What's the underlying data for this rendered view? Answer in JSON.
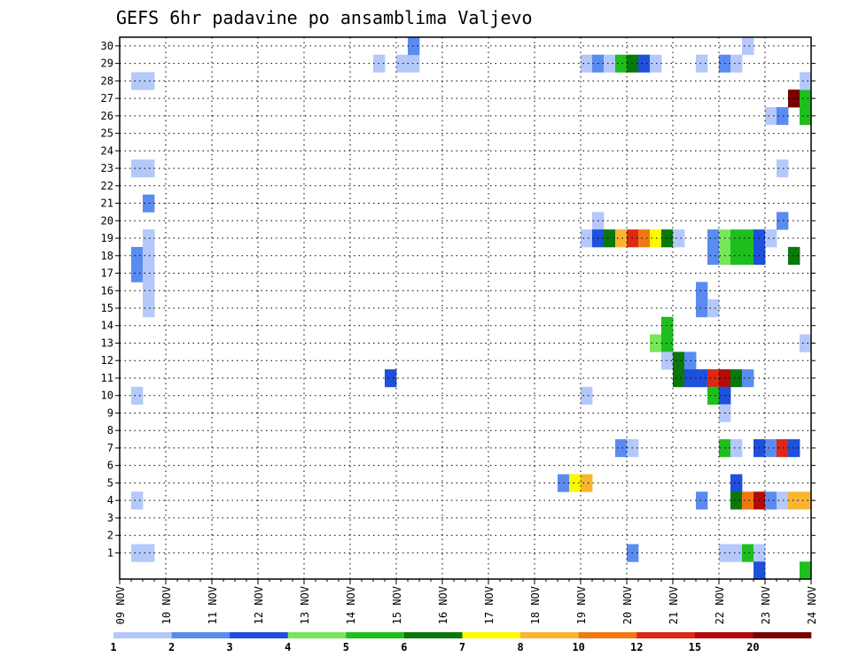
{
  "chart_data": {
    "type": "heatmap",
    "title": "GEFS 6hr padavine po ansamblima Valjevo",
    "x_labels": [
      "09 NOV",
      "10 NOV",
      "11 NOV",
      "12 NOV",
      "13 NOV",
      "14 NOV",
      "15 NOV",
      "16 NOV",
      "17 NOV",
      "18 NOV",
      "19 NOV",
      "20 NOV",
      "21 NOV",
      "22 NOV",
      "23 NOV",
      "24 NOV"
    ],
    "y_labels": [
      "1",
      "2",
      "3",
      "4",
      "5",
      "6",
      "7",
      "8",
      "9",
      "10",
      "11",
      "12",
      "13",
      "14",
      "15",
      "16",
      "17",
      "18",
      "19",
      "20",
      "21",
      "22",
      "23",
      "24",
      "25",
      "26",
      "27",
      "28",
      "29",
      "30"
    ],
    "steps_per_day": 4,
    "grid": true,
    "legend": {
      "position": "bottom",
      "boundaries": [
        "1",
        "2",
        "3",
        "4",
        "5",
        "6",
        "7",
        "8",
        "10",
        "12",
        "15",
        "20"
      ],
      "colors": [
        "#b4c8fa",
        "#5a8cf0",
        "#1e50dc",
        "#78e65a",
        "#1ebe1e",
        "#0a780a",
        "#fafa00",
        "#fab432",
        "#f07814",
        "#dc2814",
        "#b40a0a",
        "#780000"
      ]
    },
    "cells": [
      {
        "m": 1,
        "s": [
          [
            1,
            1
          ],
          [
            2,
            1
          ]
        ]
      },
      {
        "m": 4,
        "s": [
          [
            1,
            1
          ]
        ]
      },
      {
        "m": 10,
        "s": [
          [
            1,
            1
          ]
        ]
      },
      {
        "m": 15,
        "s": [
          [
            2,
            1
          ]
        ]
      },
      {
        "m": 16,
        "s": [
          [
            2,
            1
          ]
        ]
      },
      {
        "m": 17,
        "s": [
          [
            1,
            2
          ],
          [
            2,
            1
          ]
        ]
      },
      {
        "m": 18,
        "s": [
          [
            1,
            2
          ],
          [
            2,
            1
          ]
        ]
      },
      {
        "m": 19,
        "s": [
          [
            2,
            1
          ]
        ]
      },
      {
        "m": 21,
        "s": [
          [
            2,
            2
          ]
        ]
      },
      {
        "m": 23,
        "s": [
          [
            1,
            1
          ],
          [
            2,
            1
          ]
        ]
      },
      {
        "m": 28,
        "s": [
          [
            1,
            1
          ],
          [
            2,
            1
          ]
        ]
      },
      {
        "m": 29,
        "s": [
          [
            22,
            1
          ],
          [
            24,
            1
          ],
          [
            25,
            1
          ]
        ]
      },
      {
        "m": 30,
        "s": [
          [
            25,
            2
          ]
        ]
      },
      {
        "m": 11,
        "s": [
          [
            23,
            3
          ]
        ]
      },
      {
        "m": 20,
        "s": [
          [
            41,
            1
          ]
        ]
      },
      {
        "m": 19,
        "s": [
          [
            40,
            1
          ],
          [
            41,
            3
          ],
          [
            42,
            6
          ],
          [
            43,
            8
          ],
          [
            44,
            10
          ],
          [
            45,
            9
          ],
          [
            46,
            7
          ],
          [
            47,
            6
          ],
          [
            48,
            1
          ]
        ]
      },
      {
        "m": 29,
        "s": [
          [
            40,
            1
          ],
          [
            41,
            2
          ],
          [
            42,
            1
          ],
          [
            43,
            5
          ],
          [
            44,
            6
          ],
          [
            45,
            3
          ],
          [
            46,
            1
          ]
        ]
      },
      {
        "m": 10,
        "s": [
          [
            40,
            1
          ]
        ]
      },
      {
        "m": 5,
        "s": [
          [
            38,
            2
          ],
          [
            39,
            7
          ],
          [
            40,
            8
          ]
        ]
      },
      {
        "m": 7,
        "s": [
          [
            43,
            2
          ],
          [
            44,
            1
          ]
        ]
      },
      {
        "m": 1,
        "s": [
          [
            44,
            2
          ]
        ]
      },
      {
        "m": 13,
        "s": [
          [
            46,
            4
          ],
          [
            47,
            5
          ]
        ]
      },
      {
        "m": 14,
        "s": [
          [
            47,
            5
          ]
        ]
      },
      {
        "m": 12,
        "s": [
          [
            47,
            1
          ],
          [
            48,
            6
          ],
          [
            49,
            2
          ]
        ]
      },
      {
        "m": 11,
        "s": [
          [
            48,
            6
          ],
          [
            49,
            3
          ],
          [
            50,
            3
          ],
          [
            51,
            10
          ],
          [
            52,
            11
          ],
          [
            53,
            6
          ],
          [
            54,
            2
          ]
        ]
      },
      {
        "m": 10,
        "s": [
          [
            51,
            5
          ],
          [
            52,
            3
          ]
        ]
      },
      {
        "m": 9,
        "s": [
          [
            52,
            1
          ]
        ]
      },
      {
        "m": 7,
        "s": [
          [
            52,
            5
          ],
          [
            53,
            1
          ],
          [
            55,
            3
          ],
          [
            56,
            2
          ],
          [
            57,
            10
          ],
          [
            58,
            3
          ]
        ]
      },
      {
        "m": 5,
        "s": [
          [
            53,
            3
          ]
        ]
      },
      {
        "m": 4,
        "s": [
          [
            50,
            2
          ],
          [
            53,
            6
          ],
          [
            54,
            9
          ],
          [
            55,
            11
          ],
          [
            56,
            2
          ],
          [
            57,
            1
          ],
          [
            58,
            8
          ],
          [
            59,
            8
          ]
        ]
      },
      {
        "m": 1,
        "s": [
          [
            52,
            1
          ],
          [
            53,
            1
          ],
          [
            54,
            5
          ],
          [
            55,
            1
          ]
        ]
      },
      {
        "m": 0,
        "s": [
          [
            55,
            3
          ],
          [
            59,
            5
          ]
        ]
      },
      {
        "m": 15,
        "s": [
          [
            50,
            2
          ],
          [
            51,
            1
          ]
        ]
      },
      {
        "m": 16,
        "s": [
          [
            50,
            2
          ]
        ]
      },
      {
        "m": 18,
        "s": [
          [
            51,
            2
          ],
          [
            52,
            4
          ],
          [
            53,
            5
          ],
          [
            54,
            5
          ],
          [
            55,
            3
          ],
          [
            58,
            6
          ]
        ]
      },
      {
        "m": 19,
        "s": [
          [
            51,
            2
          ],
          [
            52,
            4
          ],
          [
            53,
            5
          ],
          [
            54,
            5
          ],
          [
            55,
            3
          ],
          [
            56,
            1
          ]
        ]
      },
      {
        "m": 20,
        "s": [
          [
            57,
            2
          ]
        ]
      },
      {
        "m": 23,
        "s": [
          [
            57,
            1
          ]
        ]
      },
      {
        "m": 26,
        "s": [
          [
            56,
            1
          ],
          [
            57,
            2
          ],
          [
            59,
            5
          ]
        ]
      },
      {
        "m": 27,
        "s": [
          [
            58,
            12
          ],
          [
            59,
            5
          ]
        ]
      },
      {
        "m": 28,
        "s": [
          [
            59,
            1
          ]
        ]
      },
      {
        "m": 29,
        "s": [
          [
            50,
            1
          ],
          [
            52,
            2
          ],
          [
            53,
            1
          ]
        ]
      },
      {
        "m": 30,
        "s": [
          [
            54,
            1
          ]
        ]
      },
      {
        "m": 13,
        "s": [
          [
            59,
            1
          ]
        ]
      }
    ]
  }
}
